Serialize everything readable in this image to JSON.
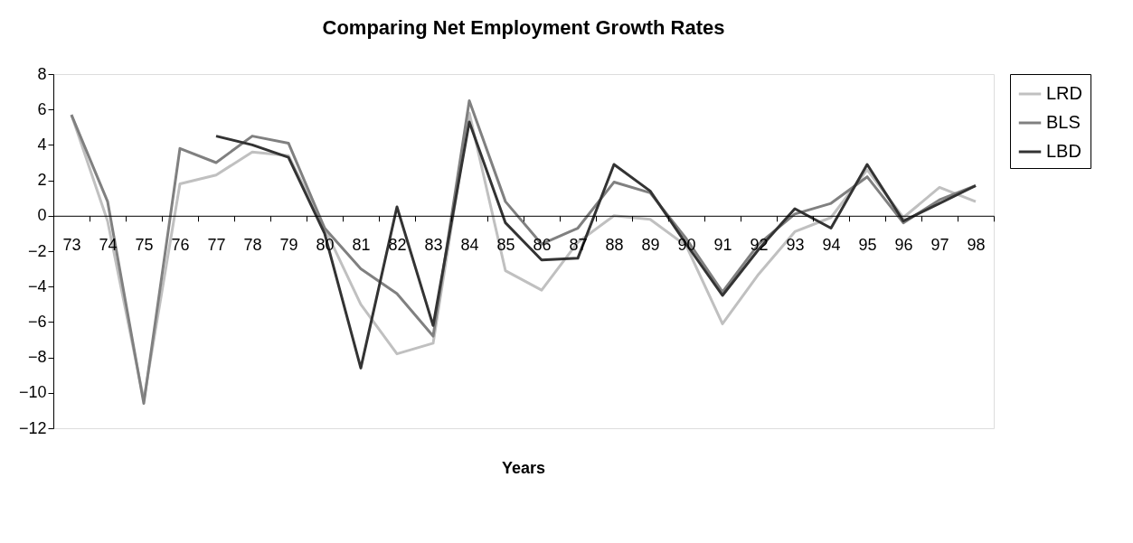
{
  "chart_data": {
    "type": "line",
    "title": "Comparing Net Employment Growth Rates",
    "xlabel": "Years",
    "categories": [
      "73",
      "74",
      "75",
      "76",
      "77",
      "78",
      "79",
      "80",
      "81",
      "82",
      "83",
      "84",
      "85",
      "86",
      "87",
      "88",
      "89",
      "90",
      "91",
      "92",
      "93",
      "94",
      "95",
      "96",
      "97",
      "98"
    ],
    "series": [
      {
        "name": "LRD",
        "color": "#c0c0c0",
        "values": [
          5.7,
          -0.3,
          -10.4,
          1.8,
          2.3,
          3.6,
          3.4,
          -0.7,
          -5.0,
          -7.8,
          -7.2,
          5.8,
          -3.1,
          -4.2,
          -1.5,
          0.0,
          -0.2,
          -1.7,
          -6.1,
          -3.3,
          -0.9,
          -0.1,
          2.6,
          -0.1,
          1.6,
          0.8
        ]
      },
      {
        "name": "BLS",
        "color": "#808080",
        "values": [
          5.7,
          0.8,
          -10.6,
          3.8,
          3.0,
          4.5,
          4.1,
          -0.7,
          -3.0,
          -4.4,
          -6.8,
          6.5,
          0.8,
          -1.6,
          -0.7,
          1.9,
          1.3,
          -1.3,
          -4.3,
          -1.6,
          0.1,
          0.7,
          2.2,
          -0.4,
          0.9,
          1.7
        ]
      },
      {
        "name": "LBD",
        "color": "#333333",
        "values": [
          null,
          null,
          null,
          null,
          4.5,
          4.0,
          3.3,
          -1.0,
          -8.6,
          0.5,
          -6.2,
          5.3,
          -0.4,
          -2.5,
          -2.4,
          2.9,
          1.4,
          -1.6,
          -4.5,
          -1.9,
          0.4,
          -0.7,
          2.9,
          -0.3,
          0.7,
          1.7
        ]
      }
    ],
    "ylim": [
      -12,
      8
    ],
    "yticks": [
      -12,
      -10,
      -8,
      -6,
      -4,
      -2,
      0,
      2,
      4,
      6,
      8
    ],
    "grid": false,
    "legend": "right",
    "marker": "none",
    "line_style": "solid"
  }
}
